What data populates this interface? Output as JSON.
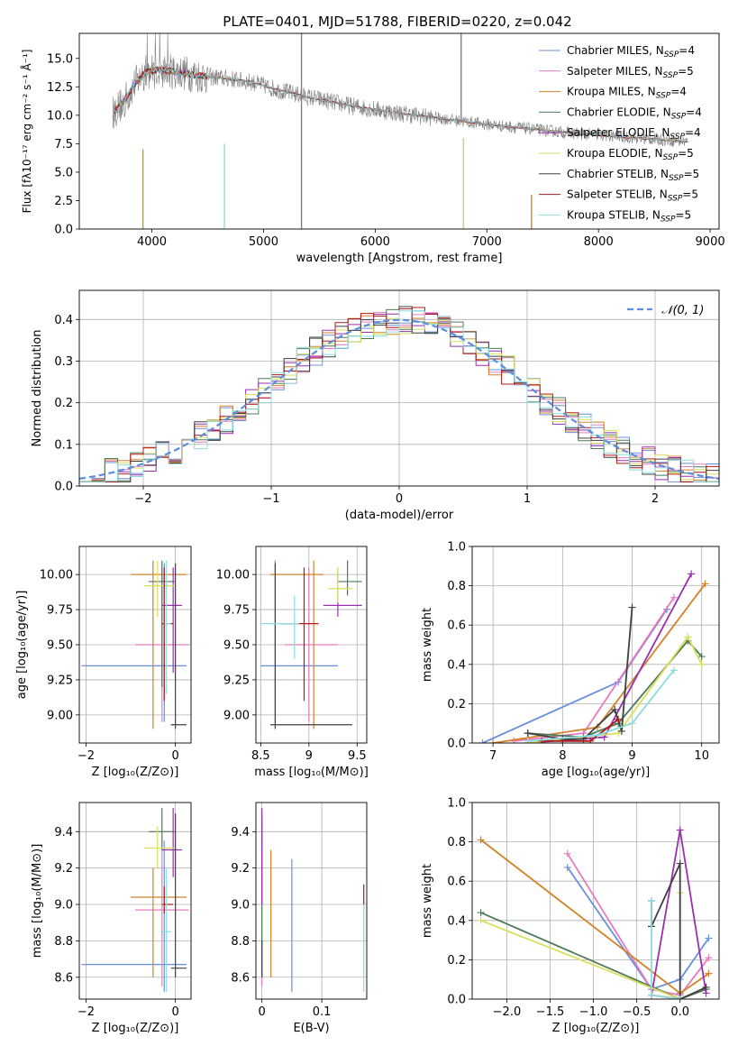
{
  "figure": {
    "title": "PLATE=0401, MJD=51788, FIBERID=0220, z=0.042"
  },
  "colors": {
    "Chabrier MILES": "#6a8fdc",
    "Salpeter MILES": "#e87bbf",
    "Kroupa MILES": "#d2832a",
    "Chabrier ELODIE": "#4e7a58",
    "Salpeter ELODIE": "#9a2fb0",
    "Kroupa ELODIE": "#d6e05a",
    "Chabrier STELIB": "#404040",
    "Salpeter STELIB": "#b01818",
    "Kroupa STELIB": "#8adce0",
    "data": "#808080",
    "normal": "#5b8ee0"
  },
  "chart_data": [
    {
      "id": "spectrum",
      "type": "line",
      "xlabel": "wavelength [Angstrom, rest frame]",
      "ylabel": "Flux [fλ10⁻¹⁷ erg cm⁻² s⁻¹ Å⁻¹]",
      "xlim": [
        3350,
        9080
      ],
      "ylim": [
        0,
        17.2
      ],
      "xticks": [
        4000,
        5000,
        6000,
        7000,
        8000,
        9000
      ],
      "yticks": [
        0.0,
        2.5,
        5.0,
        7.5,
        10.0,
        12.5,
        15.0
      ],
      "grid": false,
      "legend_position": "top-right",
      "continuum": {
        "x": [
          3650,
          3750,
          3850,
          3950,
          4050,
          4150,
          4250,
          4350,
          4500,
          4700,
          4900,
          5100,
          5400,
          5800,
          6200,
          6600,
          7000,
          7400,
          7800,
          8200,
          8800
        ],
        "y": [
          10.2,
          11.2,
          12.8,
          13.8,
          14.0,
          13.9,
          13.8,
          13.6,
          13.4,
          13.2,
          12.9,
          12.3,
          11.6,
          10.8,
          10.2,
          9.7,
          9.2,
          8.8,
          8.4,
          8.1,
          7.7
        ]
      },
      "series": [
        {
          "name": "Chabrier MILES",
          "label": "Chabrier MILES, N",
          "sub": "SSP",
          "suffix": "=4"
        },
        {
          "name": "Salpeter MILES",
          "label": "Salpeter MILES, N",
          "sub": "SSP",
          "suffix": "=5"
        },
        {
          "name": "Kroupa MILES",
          "label": "Kroupa MILES, N",
          "sub": "SSP",
          "suffix": "=4"
        },
        {
          "name": "Chabrier ELODIE",
          "label": "Chabrier ELODIE, N",
          "sub": "SSP",
          "suffix": "=4"
        },
        {
          "name": "Salpeter ELODIE",
          "label": "Salpeter ELODIE, N",
          "sub": "SSP",
          "suffix": "=4"
        },
        {
          "name": "Kroupa ELODIE",
          "label": "Kroupa ELODIE, N",
          "sub": "SSP",
          "suffix": "=5"
        },
        {
          "name": "Chabrier STELIB",
          "label": "Chabrier STELIB, N",
          "sub": "SSP",
          "suffix": "=5"
        },
        {
          "name": "Salpeter STELIB",
          "label": "Salpeter STELIB, N",
          "sub": "SSP",
          "suffix": "=5"
        },
        {
          "name": "Kroupa STELIB",
          "label": "Kroupa STELIB, N",
          "sub": "SSP",
          "suffix": "=5"
        }
      ],
      "spikes": [
        {
          "x": 3920,
          "color": "#a0a06a",
          "y0": 7.0,
          "y1": 0
        },
        {
          "x": 4650,
          "color": "#8adce0",
          "y0": 7.5,
          "y1": 0
        },
        {
          "x": 5340,
          "color": "#808080",
          "y0": 17.2,
          "y1": 0
        },
        {
          "x": 6770,
          "color": "#808080",
          "y0": 17.2,
          "y1": 9.5
        },
        {
          "x": 6790,
          "color": "#c9c9a0",
          "y0": 8.0,
          "y1": 0
        },
        {
          "x": 7400,
          "color": "#d2832a",
          "y0": 3.0,
          "y1": 0
        }
      ]
    },
    {
      "id": "residuals",
      "type": "step",
      "xlabel": "(data-model)/error",
      "ylabel": "Normed distribution",
      "xlim": [
        -2.5,
        2.5
      ],
      "ylim": [
        0,
        0.47
      ],
      "xticks": [
        -2,
        -1,
        0,
        1,
        2
      ],
      "xticklabels": [
        "−2",
        "−1",
        "0",
        "1",
        "2"
      ],
      "yticks": [
        0.0,
        0.1,
        0.2,
        0.3,
        0.4
      ],
      "grid": true,
      "bin_width": 0.1,
      "legend_position": "top-right",
      "reference": {
        "label": "𝒩(0, 1)",
        "mean": 0,
        "sigma": 1
      }
    },
    {
      "id": "age-vs-Z",
      "type": "errorbar",
      "xlabel": "Z [log₁₀(Z/Z⊙)]",
      "ylabel": "age  [log₁₀(age/yr)]",
      "xlim": [
        -2.15,
        0.35
      ],
      "ylim": [
        8.8,
        10.2
      ],
      "xticks": [
        -2,
        0
      ],
      "xticklabels": [
        "−2",
        "0"
      ],
      "yticks": [
        9.0,
        9.25,
        9.5,
        9.75,
        10.0
      ],
      "grid": true,
      "points": [
        {
          "s": "Chabrier MILES",
          "x": -0.25,
          "xe": [
            -2.1,
            0.25
          ],
          "y": 9.35,
          "ye": [
            8.95,
            10.08
          ]
        },
        {
          "s": "Salpeter MILES",
          "x": -0.3,
          "xe": [
            -0.9,
            0.3
          ],
          "y": 9.5,
          "ye": [
            8.95,
            10.05
          ]
        },
        {
          "s": "Kroupa MILES",
          "x": -0.5,
          "xe": [
            -1.0,
            0.25
          ],
          "y": 10.0,
          "ye": [
            8.9,
            10.1
          ]
        },
        {
          "s": "Chabrier ELODIE",
          "x": -0.3,
          "xe": [
            -0.6,
            0.0
          ],
          "y": 9.95,
          "ye": [
            9.2,
            10.1
          ]
        },
        {
          "s": "Salpeter ELODIE",
          "x": -0.05,
          "xe": [
            -0.3,
            0.15
          ],
          "y": 9.78,
          "ye": [
            9.3,
            10.05
          ]
        },
        {
          "s": "Kroupa ELODIE",
          "x": -0.4,
          "xe": [
            -0.7,
            0.0
          ],
          "y": 9.92,
          "ye": [
            9.7,
            10.1
          ]
        },
        {
          "s": "Chabrier STELIB",
          "x": 0.0,
          "xe": [
            -0.1,
            0.25
          ],
          "y": 8.93,
          "ye": [
            8.9,
            10.08
          ]
        },
        {
          "s": "Salpeter STELIB",
          "x": -0.25,
          "xe": [
            -0.3,
            -0.05
          ],
          "y": 9.65,
          "ye": [
            9.1,
            10.05
          ]
        },
        {
          "s": "Kroupa STELIB",
          "x": -0.2,
          "xe": [
            -0.25,
            -0.1
          ],
          "y": 9.65,
          "ye": [
            9.15,
            10.1
          ]
        }
      ]
    },
    {
      "id": "age-vs-mass",
      "type": "errorbar",
      "xlabel": "mass [log₁₀(M/M⊙)]",
      "ylabel": "",
      "xlim": [
        8.45,
        9.6
      ],
      "ylim": [
        8.8,
        10.2
      ],
      "xticks": [
        8.5,
        9.0,
        9.5
      ],
      "yticks": [
        9.0,
        9.25,
        9.5,
        9.75,
        10.0
      ],
      "grid": true,
      "points": [
        {
          "s": "Chabrier MILES",
          "x": 8.65,
          "xe": [
            8.5,
            9.3
          ],
          "y": 9.35,
          "ye": [
            8.95,
            10.1
          ]
        },
        {
          "s": "Salpeter MILES",
          "x": 9.0,
          "xe": [
            8.75,
            9.3
          ],
          "y": 9.5,
          "ye": [
            8.95,
            10.05
          ]
        },
        {
          "s": "Kroupa MILES",
          "x": 9.05,
          "xe": [
            8.6,
            9.15
          ],
          "y": 10.0,
          "ye": [
            8.9,
            10.1
          ]
        },
        {
          "s": "Chabrier ELODIE",
          "x": 9.4,
          "xe": [
            9.3,
            9.55
          ],
          "y": 9.95,
          "ye": [
            9.85,
            10.1
          ]
        },
        {
          "s": "Salpeter ELODIE",
          "x": 9.3,
          "xe": [
            9.15,
            9.55
          ],
          "y": 9.78,
          "ye": [
            9.7,
            10.05
          ]
        },
        {
          "s": "Kroupa ELODIE",
          "x": 9.3,
          "xe": [
            9.2,
            9.45
          ],
          "y": 9.9,
          "ye": [
            9.8,
            10.05
          ]
        },
        {
          "s": "Chabrier STELIB",
          "x": 8.65,
          "xe": [
            8.6,
            9.45
          ],
          "y": 8.93,
          "ye": [
            8.9,
            10.08
          ]
        },
        {
          "s": "Salpeter STELIB",
          "x": 8.95,
          "xe": [
            8.7,
            9.1
          ],
          "y": 9.65,
          "ye": [
            9.1,
            10.05
          ]
        },
        {
          "s": "Kroupa STELIB",
          "x": 8.85,
          "xe": [
            8.5,
            8.9
          ],
          "y": 9.65,
          "ye": [
            9.4,
            9.85
          ]
        }
      ]
    },
    {
      "id": "weight-vs-age",
      "type": "line",
      "xlabel": "age  [log₁₀(age/yr)]",
      "ylabel": "mass weight",
      "xlim": [
        6.7,
        10.25
      ],
      "ylim": [
        0,
        1.0
      ],
      "xticks": [
        7,
        8,
        9,
        10
      ],
      "yticks": [
        0.0,
        0.2,
        0.4,
        0.6,
        0.8,
        1.0
      ],
      "grid": true,
      "series": [
        {
          "s": "Chabrier MILES",
          "x": [
            6.85,
            8.8,
            9.5
          ],
          "y": [
            0.0,
            0.31,
            0.68
          ]
        },
        {
          "s": "Salpeter MILES",
          "x": [
            7.3,
            8.3,
            9.6
          ],
          "y": [
            0.01,
            0.05,
            0.74
          ]
        },
        {
          "s": "Kroupa MILES",
          "x": [
            7.0,
            8.5,
            10.05
          ],
          "y": [
            0.0,
            0.08,
            0.81
          ]
        },
        {
          "s": "Chabrier ELODIE",
          "x": [
            7.5,
            8.3,
            8.8,
            9.8,
            10.0
          ],
          "y": [
            0.05,
            0.03,
            0.1,
            0.52,
            0.44
          ]
        },
        {
          "s": "Salpeter ELODIE",
          "x": [
            7.5,
            8.6,
            9.85
          ],
          "y": [
            0.0,
            0.03,
            0.86
          ]
        },
        {
          "s": "Kroupa ELODIE",
          "x": [
            7.5,
            8.8,
            9.8,
            10.0
          ],
          "y": [
            0.0,
            0.05,
            0.54,
            0.4
          ]
        },
        {
          "s": "Chabrier STELIB",
          "x": [
            7.5,
            8.0,
            8.3,
            8.75,
            8.85,
            9.0
          ],
          "y": [
            0.05,
            0.02,
            0.02,
            0.17,
            0.06,
            0.69
          ]
        },
        {
          "s": "Salpeter STELIB",
          "x": [
            7.7,
            8.4,
            8.8
          ],
          "y": [
            0.01,
            0.01,
            0.12
          ]
        },
        {
          "s": "Kroupa STELIB",
          "x": [
            7.5,
            8.5,
            9.0,
            9.6
          ],
          "y": [
            0.01,
            0.04,
            0.1,
            0.37
          ]
        }
      ]
    },
    {
      "id": "mass-vs-Z",
      "type": "errorbar",
      "xlabel": "Z [log₁₀(Z/Z⊙)]",
      "ylabel": "mass [log₁₀(M/M⊙)]",
      "xlim": [
        -2.15,
        0.35
      ],
      "ylim": [
        8.48,
        9.56
      ],
      "xticks": [
        -2,
        0
      ],
      "xticklabels": [
        "−2",
        "0"
      ],
      "yticks": [
        8.6,
        8.8,
        9.0,
        9.2,
        9.4
      ],
      "grid": true,
      "points": [
        {
          "s": "Chabrier MILES",
          "x": -0.25,
          "xe": [
            -2.1,
            0.25
          ],
          "y": 8.67,
          "ye": [
            8.52,
            9.35
          ]
        },
        {
          "s": "Salpeter MILES",
          "x": -0.3,
          "xe": [
            -0.9,
            0.3
          ],
          "y": 8.97,
          "ye": [
            8.55,
            9.3
          ]
        },
        {
          "s": "Kroupa MILES",
          "x": -0.5,
          "xe": [
            -1.0,
            0.25
          ],
          "y": 9.04,
          "ye": [
            8.6,
            9.2
          ]
        },
        {
          "s": "Chabrier ELODIE",
          "x": -0.3,
          "xe": [
            -0.6,
            0.0
          ],
          "y": 9.4,
          "ye": [
            9.3,
            9.53
          ]
        },
        {
          "s": "Salpeter ELODIE",
          "x": -0.05,
          "xe": [
            -0.3,
            0.15
          ],
          "y": 9.3,
          "ye": [
            9.15,
            9.53
          ]
        },
        {
          "s": "Kroupa ELODIE",
          "x": -0.4,
          "xe": [
            -0.7,
            0.0
          ],
          "y": 9.31,
          "ye": [
            9.2,
            9.43
          ]
        },
        {
          "s": "Chabrier STELIB",
          "x": 0.0,
          "xe": [
            -0.1,
            0.25
          ],
          "y": 8.65,
          "ye": [
            8.6,
            9.5
          ]
        },
        {
          "s": "Salpeter STELIB",
          "x": -0.25,
          "xe": [
            -0.3,
            -0.05
          ],
          "y": 9.0,
          "ye": [
            8.95,
            9.1
          ]
        },
        {
          "s": "Kroupa STELIB",
          "x": -0.2,
          "xe": [
            -0.3,
            -0.1
          ],
          "y": 8.85,
          "ye": [
            8.52,
            9.2
          ]
        }
      ]
    },
    {
      "id": "mass-vs-ebv",
      "type": "errorbar",
      "xlabel": "E(B-V)",
      "ylabel": "",
      "xlim": [
        -0.01,
        0.175
      ],
      "ylim": [
        8.48,
        9.56
      ],
      "xticks": [
        0.0,
        0.1
      ],
      "yticks": [
        8.6,
        8.8,
        9.0,
        9.2,
        9.4
      ],
      "grid": true,
      "points": [
        {
          "s": "Chabrier MILES",
          "x": 0.05,
          "y": 9.0,
          "ye": [
            8.52,
            9.25
          ]
        },
        {
          "s": "Salpeter MILES",
          "x": 0.0,
          "y": 9.0,
          "ye": [
            8.55,
            9.45
          ]
        },
        {
          "s": "Kroupa MILES",
          "x": 0.015,
          "y": 9.0,
          "ye": [
            8.6,
            9.3
          ]
        },
        {
          "s": "Chabrier ELODIE",
          "x": 0.0,
          "y": 9.0,
          "ye": [
            8.6,
            9.5
          ]
        },
        {
          "s": "Salpeter ELODIE",
          "x": 0.0,
          "y": 9.3,
          "ye": [
            9.0,
            9.53
          ]
        },
        {
          "s": "Kroupa ELODIE",
          "x": 0.17,
          "y": 8.9,
          "ye": [
            8.6,
            9.0
          ]
        },
        {
          "s": "Chabrier STELIB",
          "x": 0.0,
          "y": 8.7,
          "ye": [
            8.6,
            8.8
          ]
        },
        {
          "s": "Salpeter STELIB",
          "x": 0.17,
          "y": 9.05,
          "ye": [
            9.0,
            9.11
          ]
        },
        {
          "s": "Kroupa STELIB",
          "x": 0.17,
          "y": 8.8,
          "ye": [
            8.52,
            9.0
          ]
        }
      ]
    },
    {
      "id": "weight-vs-Z",
      "type": "line",
      "xlabel": "Z [log₁₀(Z/Z⊙)]",
      "ylabel": "mass weight",
      "xlim": [
        -2.4,
        0.45
      ],
      "ylim": [
        0,
        1.0
      ],
      "xticks": [
        -2.0,
        -1.5,
        -1.0,
        -0.5,
        0.0
      ],
      "xticklabels": [
        "−2.0",
        "−1.5",
        "−1.0",
        "−0.5",
        "0.0"
      ],
      "yticks": [
        0.0,
        0.2,
        0.4,
        0.6,
        0.8,
        1.0
      ],
      "grid": true,
      "series": [
        {
          "s": "Chabrier MILES",
          "x": [
            -1.3,
            -0.33,
            0.0,
            0.33
          ],
          "y": [
            0.67,
            0.05,
            0.1,
            0.31
          ]
        },
        {
          "s": "Salpeter MILES",
          "x": [
            -1.3,
            -0.33,
            0.0,
            0.33
          ],
          "y": [
            0.74,
            0.05,
            0.02,
            0.21
          ]
        },
        {
          "s": "Kroupa MILES",
          "x": [
            -2.3,
            0.0,
            0.33
          ],
          "y": [
            0.81,
            0.03,
            0.13
          ]
        },
        {
          "s": "Chabrier ELODIE",
          "x": [
            -2.3,
            0.0,
            0.3
          ],
          "y": [
            0.44,
            0.0,
            0.05
          ]
        },
        {
          "s": "Salpeter ELODIE",
          "x": [
            -0.33,
            0.0,
            0.3
          ],
          "y": [
            0.02,
            0.86,
            0.03
          ]
        },
        {
          "s": "Kroupa ELODIE",
          "x": [
            -2.3,
            0.0,
            0.0
          ],
          "y": [
            0.4,
            0.0,
            0.54
          ]
        },
        {
          "s": "Chabrier STELIB",
          "x": [
            -0.33,
            -0.33,
            0.0,
            0.0,
            0.3
          ],
          "y": [
            0.5,
            0.37,
            0.69,
            0.0,
            0.06
          ]
        },
        {
          "s": "Salpeter STELIB",
          "x": [
            -0.33,
            0.0
          ],
          "y": [
            0.02,
            0.0
          ]
        },
        {
          "s": "Kroupa STELIB",
          "x": [
            -0.33,
            -0.33,
            0.0
          ],
          "y": [
            0.5,
            0.02,
            0.0
          ]
        }
      ]
    }
  ]
}
